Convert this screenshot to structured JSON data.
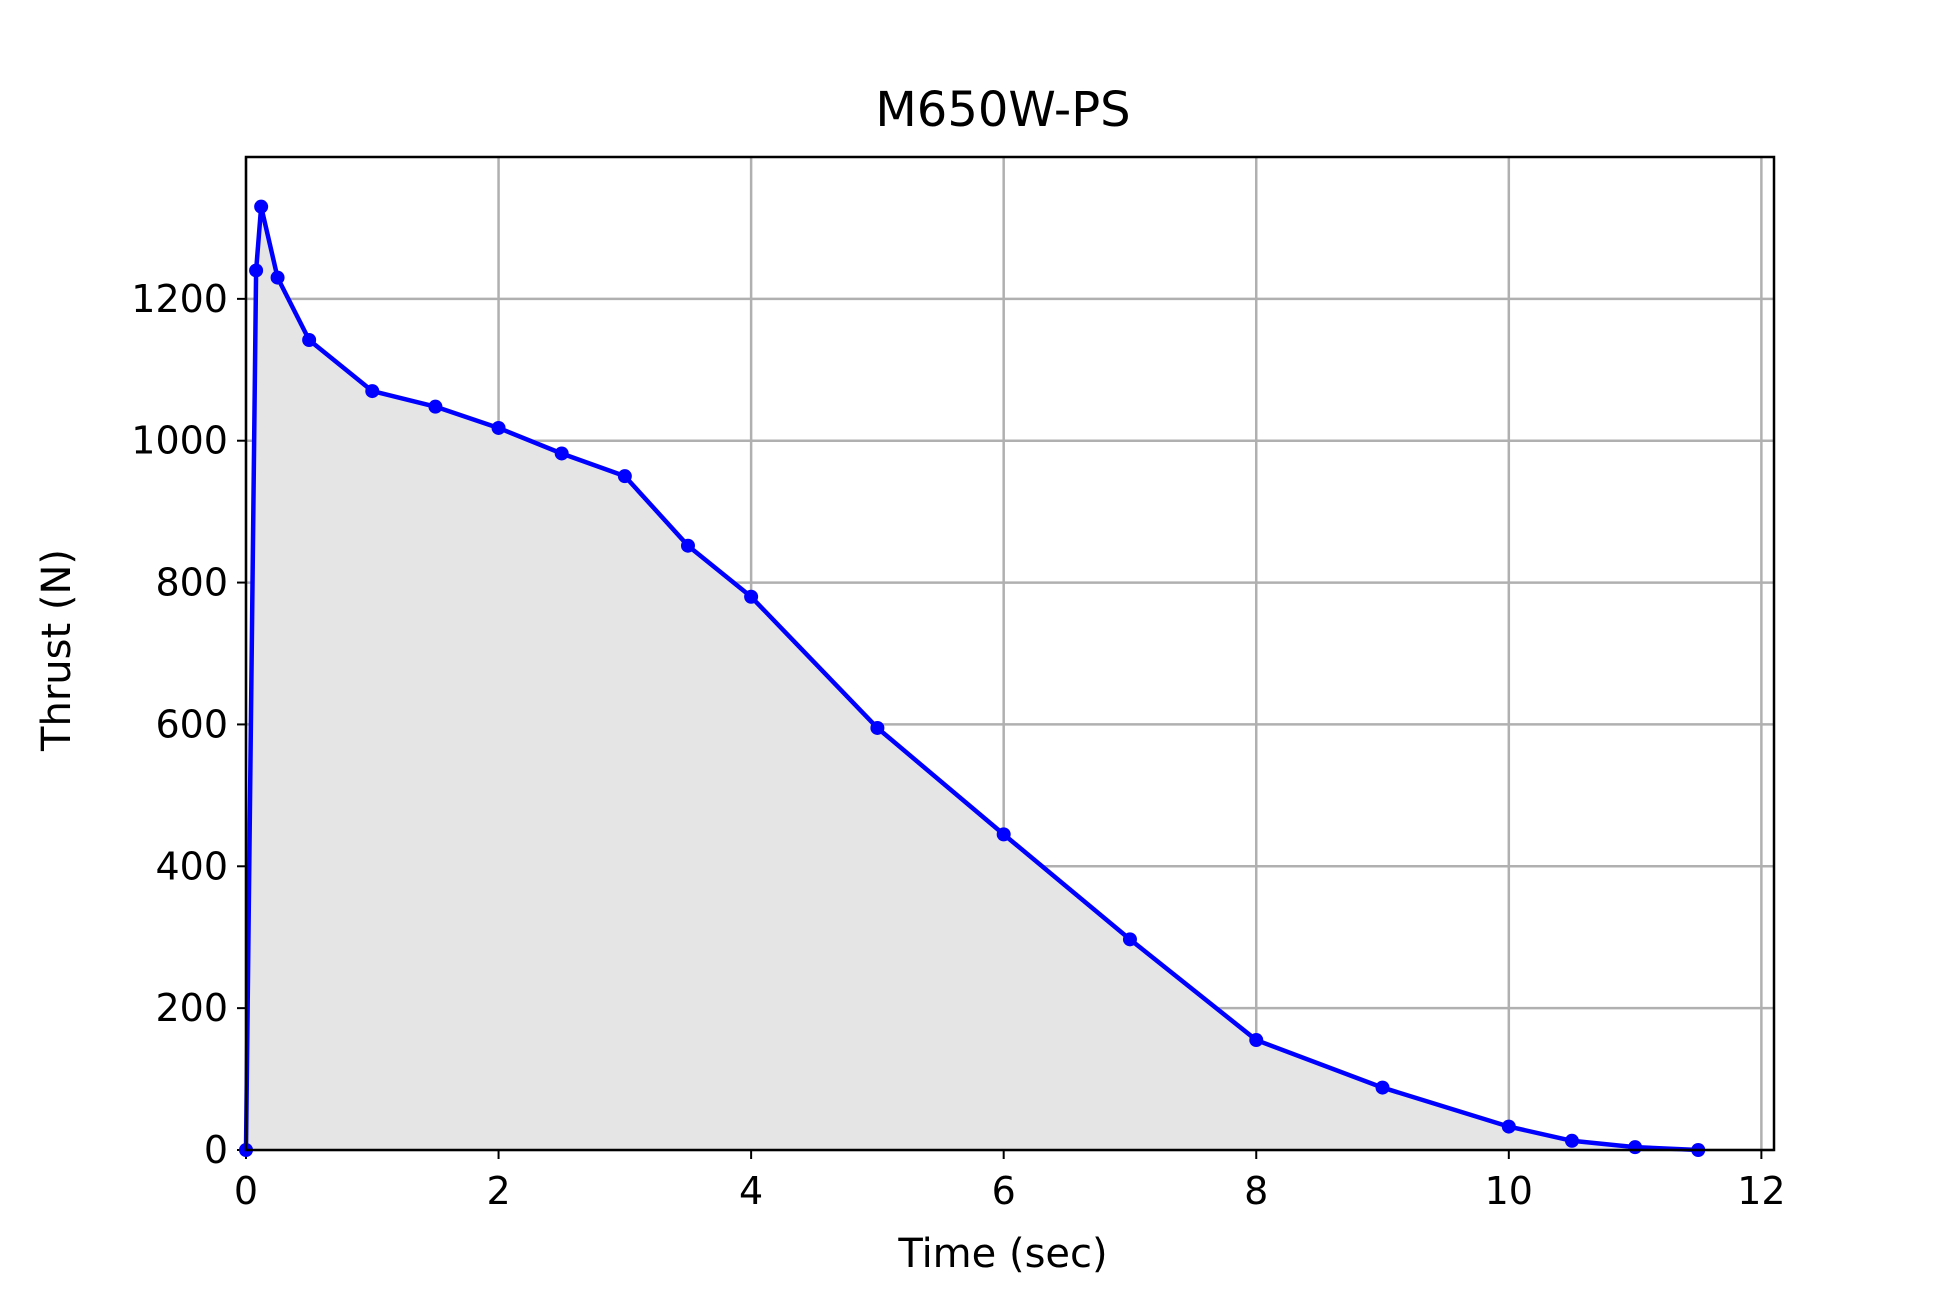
{
  "chart_data": {
    "type": "area",
    "title": "M650W-PS",
    "xlabel": "Time (sec)",
    "ylabel": "Thrust (N)",
    "xlim": [
      0,
      12.1
    ],
    "ylim": [
      0,
      1400
    ],
    "xticks": [
      0,
      2,
      4,
      6,
      8,
      10,
      12
    ],
    "yticks": [
      0,
      200,
      400,
      600,
      800,
      1000,
      1200
    ],
    "xtick_labels": [
      "0",
      "2",
      "4",
      "6",
      "8",
      "10",
      "12"
    ],
    "ytick_labels": [
      "0",
      "200",
      "400",
      "600",
      "800",
      "1000",
      "1200"
    ],
    "grid": true,
    "legend": "none",
    "series": [
      {
        "x": [
          0,
          0.08,
          0.12,
          0.25,
          0.5,
          1.0,
          1.5,
          2.0,
          2.5,
          3.0,
          3.5,
          4.0,
          5.0,
          6.0,
          7.0,
          8.0,
          9.0,
          10.0,
          10.5,
          11.0,
          11.5
        ],
        "y": [
          0,
          1240,
          1330,
          1230,
          1142,
          1070,
          1048,
          1018,
          982,
          950,
          852,
          780,
          595,
          445,
          297,
          155,
          88,
          33,
          13,
          4,
          0
        ],
        "color": "#0000ff",
        "marker": "circle",
        "fill_color": "#e5e5e5"
      }
    ],
    "colors": {
      "line": "#0000ff",
      "fill": "#e5e5e5",
      "grid": "#b0b0b0",
      "axes": "#000000"
    }
  }
}
